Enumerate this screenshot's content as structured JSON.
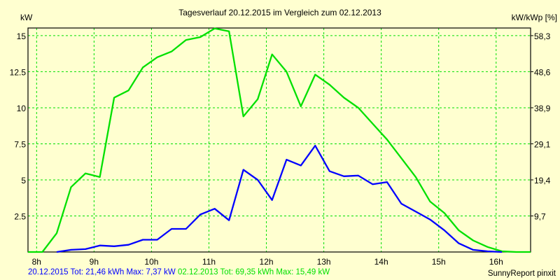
{
  "chart_data": {
    "type": "line",
    "title": "Tagesverlauf 20.12.2015 im Vergleich zum 02.12.2013",
    "ylabel": "kW",
    "y2label": "kW/kWp [%]",
    "xlim": [
      7.85,
      16.6
    ],
    "ylim": [
      0,
      15.53
    ],
    "grid": true,
    "x_ticks": [
      8,
      9,
      10,
      11,
      12,
      13,
      14,
      15,
      16
    ],
    "x_tick_labels": [
      "8h",
      "9h",
      "10h",
      "11h",
      "12h",
      "13h",
      "14h",
      "15h",
      "16h"
    ],
    "y_ticks": [
      2.5,
      5,
      7.5,
      10,
      12.5,
      15
    ],
    "y_tick_labels": [
      "2.5",
      "5",
      "7.5",
      "10",
      "12.5",
      "15"
    ],
    "y2_tick_labels": [
      "9,7",
      "19,4",
      "29,1",
      "38,9",
      "48,6",
      "58,3"
    ],
    "series": [
      {
        "name": "02.12.2013",
        "color": "#00e000",
        "x": [
          7.85,
          8.1,
          8.35,
          8.6,
          8.85,
          9.1,
          9.35,
          9.6,
          9.85,
          10.1,
          10.35,
          10.6,
          10.85,
          11.1,
          11.35,
          11.6,
          11.85,
          12.1,
          12.35,
          12.6,
          12.85,
          13.1,
          13.35,
          13.6,
          13.85,
          14.1,
          14.35,
          14.6,
          14.85,
          15.1,
          15.35,
          15.6,
          15.85,
          16.1,
          16.35,
          16.6
        ],
        "values": [
          0,
          0,
          1.3,
          4.5,
          5.45,
          5.2,
          10.7,
          11.2,
          12.8,
          13.5,
          13.9,
          14.7,
          14.9,
          15.5,
          15.3,
          9.4,
          10.6,
          13.7,
          12.5,
          10.1,
          12.3,
          11.6,
          10.7,
          10.0,
          8.9,
          7.8,
          6.5,
          5.2,
          3.5,
          2.7,
          1.5,
          0.8,
          0.35,
          0.05,
          0,
          0
        ]
      },
      {
        "name": "20.12.2015",
        "color": "#0000ff",
        "x": [
          8.35,
          8.6,
          8.85,
          9.1,
          9.35,
          9.6,
          9.85,
          10.1,
          10.35,
          10.6,
          10.85,
          11.1,
          11.35,
          11.6,
          11.85,
          12.1,
          12.35,
          12.6,
          12.85,
          13.1,
          13.35,
          13.6,
          13.85,
          14.1,
          14.35,
          14.6,
          14.85,
          15.1,
          15.35,
          15.6,
          15.85,
          16.1
        ],
        "values": [
          0,
          0.15,
          0.2,
          0.45,
          0.4,
          0.5,
          0.85,
          0.85,
          1.6,
          1.6,
          2.6,
          3.0,
          2.2,
          5.7,
          5.0,
          3.6,
          6.4,
          6.0,
          7.37,
          5.6,
          5.25,
          5.3,
          4.7,
          4.85,
          3.35,
          2.8,
          2.25,
          1.5,
          0.6,
          0.15,
          0.05,
          0
        ]
      }
    ],
    "legend": {
      "series1_text": "20.12.2015 Tot: 21,46 kWh Max: 7,37 kW",
      "series2_text": "02.12.2013 Tot: 69,35 kWh Max: 15,49 kW",
      "placement": "bottom-left"
    },
    "credit": "SunnyReport pinxit"
  },
  "colors": {
    "background": "#ffffd0",
    "grid": "#00e000"
  }
}
